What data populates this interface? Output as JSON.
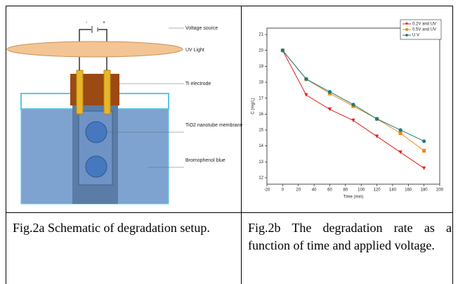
{
  "schematic": {
    "polarity": [
      "-",
      "+"
    ],
    "labels": [
      "Voltage source",
      "UV Light",
      "Ti electrode",
      "TiO2 nanotube membrane",
      "Bromophenol blue"
    ]
  },
  "captions": [
    "Fig.2a Schematic of degradation setup.",
    "Fig.2b The degradation rate as a function of time and applied voltage."
  ],
  "chart_data": {
    "type": "line",
    "x_label": "Time (min)",
    "y_label": "C (mg/L)",
    "x": [
      0,
      30,
      60,
      90,
      120,
      150,
      180
    ],
    "series": [
      {
        "name": "0.2V and UV",
        "color": "#e0201b",
        "marker": "triangle-down",
        "values": [
          20,
          17.2,
          16.3,
          15.6,
          14.6,
          13.6,
          12.6
        ]
      },
      {
        "name": "0.5V and UV",
        "color": "#f08a12",
        "marker": "square",
        "values": [
          20,
          18.2,
          17.3,
          16.5,
          15.7,
          14.8,
          13.7
        ]
      },
      {
        "name": "U V",
        "color": "#1e7a7a",
        "marker": "circle",
        "values": [
          20,
          18.2,
          17.4,
          16.6,
          15.7,
          15.0,
          14.3
        ]
      }
    ],
    "xlim": [
      -20,
      200
    ],
    "xticks": [
      -20,
      0,
      20,
      40,
      60,
      80,
      100,
      120,
      140,
      160,
      180,
      200
    ],
    "ylim": [
      11.6,
      21.4
    ],
    "yticks": [
      12,
      13,
      14,
      15,
      16,
      17,
      18,
      19,
      20,
      21
    ],
    "legend": "upper right"
  }
}
